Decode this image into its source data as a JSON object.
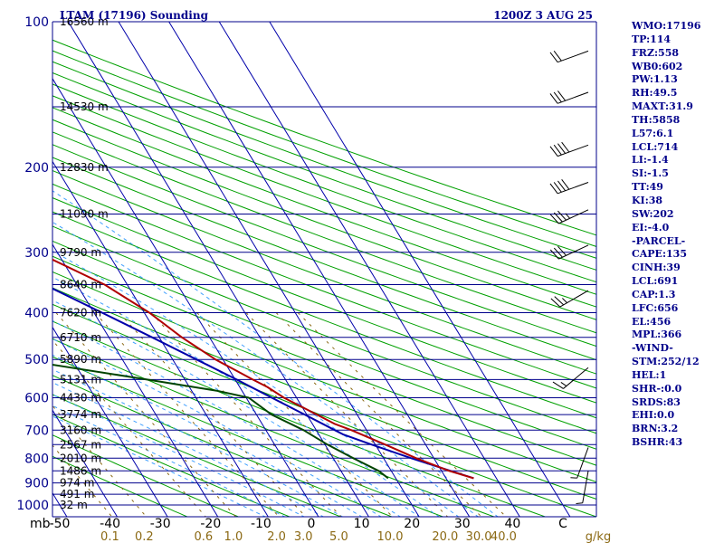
{
  "header": {
    "station": "LTAM (17196) Sounding",
    "time": "1200Z  3 AUG 25"
  },
  "chart_data": {
    "type": "skew-t log-p sounding",
    "pressure_levels": [
      100,
      200,
      300,
      400,
      500,
      600,
      700,
      800,
      900,
      1000
    ],
    "pressure_unit_label": "mb",
    "height_labels": [
      {
        "p": 100,
        "label": "16560 m"
      },
      {
        "p": 150,
        "label": "14530 m"
      },
      {
        "p": 200,
        "label": "12830 m"
      },
      {
        "p": 250,
        "label": "11090 m"
      },
      {
        "p": 300,
        "label": "9790 m"
      },
      {
        "p": 350,
        "label": "8640 m"
      },
      {
        "p": 400,
        "label": "7620 m"
      },
      {
        "p": 450,
        "label": "6710 m"
      },
      {
        "p": 500,
        "label": "5890 m"
      },
      {
        "p": 550,
        "label": "5131 m"
      },
      {
        "p": 600,
        "label": "4430 m"
      },
      {
        "p": 650,
        "label": "3774 m"
      },
      {
        "p": 700,
        "label": "3160 m"
      },
      {
        "p": 750,
        "label": "2567 m"
      },
      {
        "p": 800,
        "label": "2010 m"
      },
      {
        "p": 850,
        "label": "1486 m"
      },
      {
        "p": 900,
        "label": "974 m"
      },
      {
        "p": 950,
        "label": "491 m"
      },
      {
        "p": 1000,
        "label": "32 m"
      }
    ],
    "temperature_ticks": [
      "-50",
      "-40",
      "-30",
      "-20",
      "-10",
      "0",
      "10",
      "20",
      "30",
      "40",
      "C"
    ],
    "mixing_ratio_ticks": [
      {
        "value": 0.1,
        "label": "0.1"
      },
      {
        "value": 0.2,
        "label": "0.2"
      },
      {
        "value": 0.6,
        "label": "0.6"
      },
      {
        "value": 1.0,
        "label": "1.0"
      },
      {
        "value": 2.0,
        "label": "2.0"
      },
      {
        "value": 3.0,
        "label": "3.0"
      },
      {
        "value": 5.0,
        "label": "5.0"
      },
      {
        "value": 10.0,
        "label": "10.0"
      },
      {
        "value": 20.0,
        "label": "20.0"
      },
      {
        "value": 30.0,
        "label": "30.0"
      },
      {
        "value": 40.0,
        "label": "40.0"
      }
    ],
    "mixing_ratio_unit": "g/kg",
    "temperature_profile": [
      {
        "p": 880,
        "t": 35.5
      },
      {
        "p": 850,
        "t": 31.5
      },
      {
        "p": 800,
        "t": 26.5
      },
      {
        "p": 750,
        "t": 22.0
      },
      {
        "p": 700,
        "t": 17.0
      },
      {
        "p": 680,
        "t": 14.5
      },
      {
        "p": 650,
        "t": 12.0
      },
      {
        "p": 600,
        "t": 7.5
      },
      {
        "p": 570,
        "t": 5.5
      },
      {
        "p": 550,
        "t": 3.5
      },
      {
        "p": 500,
        "t": -1.5
      },
      {
        "p": 450,
        "t": -5.5
      },
      {
        "p": 400,
        "t": -9.0
      },
      {
        "p": 350,
        "t": -14.5
      },
      {
        "p": 300,
        "t": -24.0
      },
      {
        "p": 250,
        "t": -33.0
      },
      {
        "p": 200,
        "t": -45.0
      },
      {
        "p": 150,
        "t": -58.5
      },
      {
        "p": 120,
        "t": -70.0
      },
      {
        "p": 110,
        "t": -72.5
      },
      {
        "p": 100,
        "t": -74.5
      }
    ],
    "dewpoint_profile": [
      {
        "p": 880,
        "t": 18.5
      },
      {
        "p": 850,
        "t": 17.5
      },
      {
        "p": 800,
        "t": 14.0
      },
      {
        "p": 750,
        "t": 10.5
      },
      {
        "p": 700,
        "t": 7.5
      },
      {
        "p": 650,
        "t": 3.0
      },
      {
        "p": 600,
        "t": 0.5
      },
      {
        "p": 580,
        "t": -5.0
      },
      {
        "p": 550,
        "t": -17.5
      },
      {
        "p": 500,
        "t": -40.5
      },
      {
        "p": 450,
        "t": -42.0
      },
      {
        "p": 400,
        "t": -42.5
      },
      {
        "p": 350,
        "t": -46.0
      },
      {
        "p": 300,
        "t": -53.5
      }
    ],
    "parcel_profile": [
      {
        "p": 880,
        "t": 35.5
      },
      {
        "p": 850,
        "t": 31.8
      },
      {
        "p": 800,
        "t": 25.5
      },
      {
        "p": 750,
        "t": 19.3
      },
      {
        "p": 714,
        "t": 14.8
      },
      {
        "p": 700,
        "t": 13.7
      },
      {
        "p": 650,
        "t": 9.6
      },
      {
        "p": 600,
        "t": 5.1
      },
      {
        "p": 550,
        "t": 0.3
      },
      {
        "p": 500,
        "t": -5.3
      },
      {
        "p": 450,
        "t": -11.4
      },
      {
        "p": 400,
        "t": -18.4
      },
      {
        "p": 350,
        "t": -26.5
      },
      {
        "p": 300,
        "t": -36.0
      },
      {
        "p": 250,
        "t": -47.5
      },
      {
        "p": 200,
        "t": -61.0
      },
      {
        "p": 150,
        "t": -76.0
      },
      {
        "p": 120,
        "t": -86.0
      }
    ],
    "wind_barbs": [
      {
        "p": 115,
        "dir": 250,
        "kt": 20
      },
      {
        "p": 140,
        "dir": 250,
        "kt": 30
      },
      {
        "p": 180,
        "dir": 250,
        "kt": 40
      },
      {
        "p": 215,
        "dir": 250,
        "kt": 40
      },
      {
        "p": 245,
        "dir": 245,
        "kt": 35
      },
      {
        "p": 290,
        "dir": 245,
        "kt": 30
      },
      {
        "p": 360,
        "dir": 240,
        "kt": 25
      },
      {
        "p": 520,
        "dir": 230,
        "kt": 15
      },
      {
        "p": 760,
        "dir": 200,
        "kt": 5
      },
      {
        "p": 850,
        "dir": 190,
        "kt": 5
      }
    ],
    "grid": true,
    "legend": "none"
  },
  "indices": [
    "WMO:17196",
    "TP:114",
    "FRZ:558",
    "WB0:602",
    "PW:1.13",
    "RH:49.5",
    "MAXT:31.9",
    "TH:5858",
    "L57:6.1",
    "LCL:714",
    "LI:-1.4",
    "SI:-1.5",
    "TT:49",
    "KI:38",
    "SW:202",
    "EI:-4.0",
    "-PARCEL-",
    "CAPE:135",
    "CINH:39",
    "LCL:691",
    "CAP:1.3",
    "LFC:656",
    "EL:456",
    "MPL:366",
    "-WIND-",
    "STM:252/12",
    "HEL:1",
    "SHR-:0.0",
    "SRDS:83",
    "EHI:0.0",
    "BRN:3.2",
    "BSHR:43"
  ],
  "colors": {
    "isobar": "#00008b",
    "isotherm": "#0000aa",
    "dry_adiabat": "#00a000",
    "moist_adiabat": "#40a0ff",
    "mixing_ratio": "#8b6914",
    "temperature": "#b00000",
    "dewpoint": "#004400",
    "parcel": "#0000aa",
    "wind": "#000000",
    "text": "#00008b"
  }
}
